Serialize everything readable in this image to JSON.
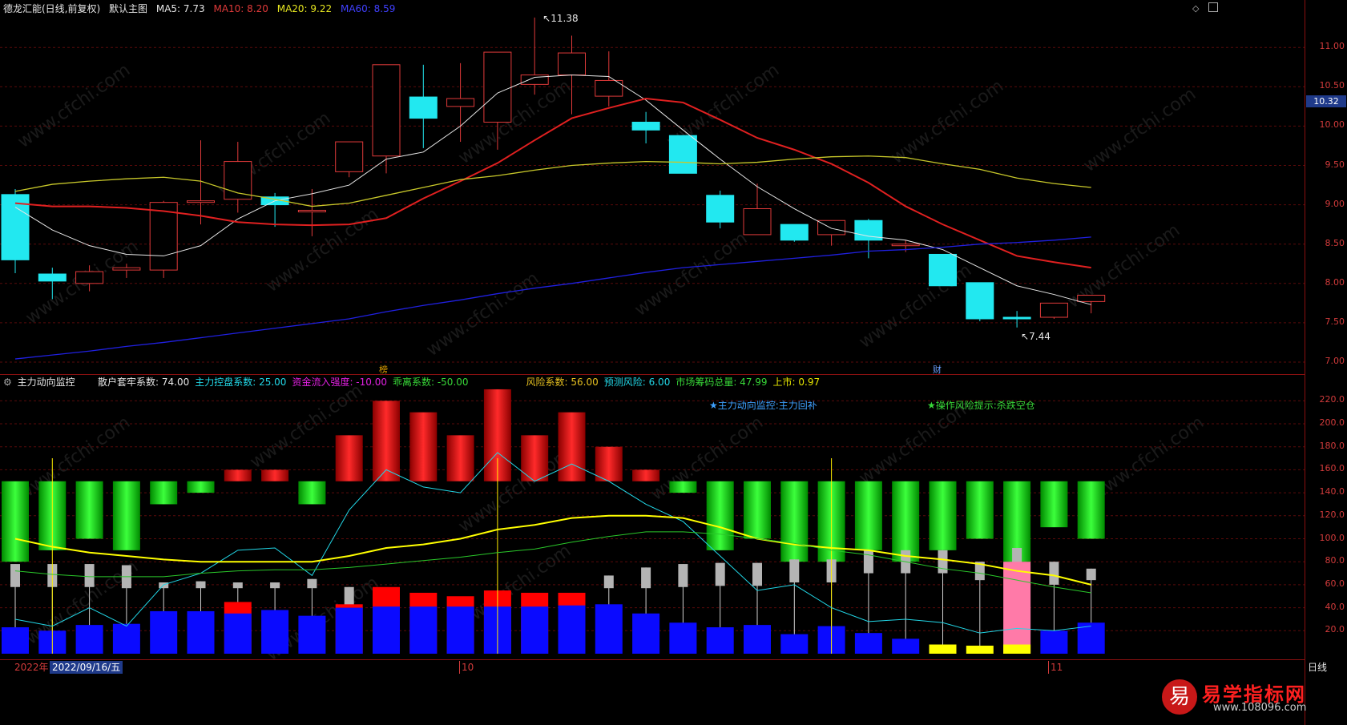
{
  "main_header": {
    "stock": "德龙汇能(日线,前复权)",
    "chart_name": "默认主图",
    "ma5": "MA5: 7.73",
    "ma10": "MA10: 8.20",
    "ma20": "MA20: 9.22",
    "ma60": "MA60: 8.59"
  },
  "colors": {
    "ma5": "#e6e6e6",
    "ma10": "#e02020",
    "ma20": "#c8c82a",
    "ma60": "#2020e0",
    "up": "#e03a3a",
    "down": "#22e8f0"
  },
  "price_axis": {
    "ticks": [
      "11.00",
      "10.50",
      "10.00",
      "9.50",
      "9.00",
      "8.50",
      "8.00",
      "7.50",
      "7.00"
    ],
    "current": "10.32"
  },
  "annotations": {
    "high_label": "11.38",
    "low_label": "7.44",
    "marker_bang": "榜",
    "marker_cai": "财"
  },
  "sub_header": {
    "title": "主力动向监控",
    "items": [
      {
        "text": "散户套牢系数: 74.00",
        "color": "#e6e6e6"
      },
      {
        "text": "主力控盘系数: 25.00",
        "color": "#22d8e8"
      },
      {
        "text": "资金流入强度: -10.00",
        "color": "#e020e0"
      },
      {
        "text": "乖离系数: -50.00",
        "color": "#38d838"
      },
      {
        "text": "风险系数: 56.00",
        "color": "#e6c020"
      },
      {
        "text": "预测风险: 6.00",
        "color": "#22d8e8"
      },
      {
        "text": "市场筹码总量: 47.99",
        "color": "#38d838"
      },
      {
        "text": "上市: 0.97",
        "color": "#e6e600"
      }
    ],
    "signal1": "★主力动向监控:主力回补",
    "signal2": "★操作风险提示:杀跌空仓"
  },
  "sub_axis": {
    "ticks": [
      "220.0",
      "200.0",
      "180.0",
      "160.0",
      "140.0",
      "120.0",
      "100.0",
      "80.0",
      "60.0",
      "40.0",
      "20.0"
    ]
  },
  "bottom_bar": {
    "year": "2022年",
    "date": "2022/09/16/五",
    "month10": "10",
    "month11": "11",
    "period": "日线"
  },
  "logo": {
    "char": "易",
    "name": "易学指标网",
    "url": "www.108096.com"
  },
  "watermark": "www.cfchi.com",
  "chart_data": [
    {
      "type": "candlestick",
      "title": "德龙汇能(日线,前复权)",
      "ylim": [
        7.0,
        11.5
      ],
      "candles": [
        [
          9.13,
          8.3,
          9.2,
          8.13
        ],
        [
          8.12,
          8.03,
          8.2,
          7.8
        ],
        [
          8.0,
          8.15,
          8.23,
          7.9
        ],
        [
          8.17,
          8.2,
          8.25,
          8.07
        ],
        [
          8.17,
          9.03,
          9.05,
          8.07
        ],
        [
          9.03,
          9.05,
          9.82,
          8.75
        ],
        [
          9.07,
          9.55,
          9.8,
          8.9
        ],
        [
          9.1,
          9.0,
          9.15,
          8.72
        ],
        [
          8.93,
          8.93,
          9.2,
          8.6
        ],
        [
          9.42,
          9.8,
          9.8,
          9.35
        ],
        [
          9.62,
          10.78,
          10.78,
          9.4
        ],
        [
          10.37,
          10.1,
          10.78,
          9.72
        ],
        [
          10.25,
          10.35,
          10.8,
          9.8
        ],
        [
          10.05,
          10.94,
          10.94,
          9.7
        ],
        [
          10.53,
          10.65,
          11.38,
          10.4
        ],
        [
          10.65,
          10.93,
          11.15,
          10.15
        ],
        [
          10.38,
          10.58,
          10.95,
          10.25
        ],
        [
          10.05,
          9.95,
          10.18,
          9.78
        ],
        [
          9.88,
          9.4,
          9.88,
          9.4
        ],
        [
          9.12,
          8.78,
          9.18,
          8.7
        ],
        [
          8.62,
          8.95,
          9.27,
          8.62
        ],
        [
          8.75,
          8.55,
          8.75,
          8.53
        ],
        [
          8.62,
          8.8,
          8.8,
          8.48
        ],
        [
          8.8,
          8.55,
          8.82,
          8.32
        ],
        [
          8.48,
          8.5,
          8.55,
          8.4
        ],
        [
          8.37,
          7.97,
          8.37,
          7.97
        ],
        [
          8.01,
          7.55,
          8.01,
          7.52
        ],
        [
          7.57,
          7.55,
          7.65,
          7.44
        ],
        [
          7.57,
          7.75,
          7.75,
          7.55
        ],
        [
          7.77,
          7.85,
          7.85,
          7.62
        ]
      ],
      "series": [
        {
          "name": "MA5",
          "values": [
            8.97,
            8.68,
            8.48,
            8.37,
            8.35,
            8.48,
            8.82,
            9.05,
            9.14,
            9.25,
            9.58,
            9.67,
            10.0,
            10.42,
            10.62,
            10.65,
            10.63,
            10.33,
            9.95,
            9.58,
            9.23,
            8.95,
            8.7,
            8.6,
            8.55,
            8.43,
            8.2,
            7.97,
            7.86,
            7.73
          ]
        },
        {
          "name": "MA10",
          "values": [
            9.02,
            8.98,
            8.98,
            8.96,
            8.92,
            8.86,
            8.78,
            8.75,
            8.74,
            8.75,
            8.83,
            9.08,
            9.3,
            9.53,
            9.82,
            10.1,
            10.23,
            10.35,
            10.3,
            10.08,
            9.85,
            9.7,
            9.52,
            9.28,
            8.98,
            8.75,
            8.55,
            8.35,
            8.27,
            8.2
          ]
        },
        {
          "name": "MA20",
          "values": [
            9.17,
            9.26,
            9.3,
            9.33,
            9.35,
            9.3,
            9.15,
            9.07,
            8.98,
            9.02,
            9.12,
            9.22,
            9.32,
            9.37,
            9.44,
            9.5,
            9.53,
            9.55,
            9.54,
            9.52,
            9.54,
            9.58,
            9.61,
            9.62,
            9.6,
            9.52,
            9.45,
            9.34,
            9.27,
            9.22
          ]
        },
        {
          "name": "MA60",
          "values": [
            7.04,
            7.09,
            7.14,
            7.2,
            7.25,
            7.31,
            7.37,
            7.43,
            7.49,
            7.55,
            7.64,
            7.72,
            7.79,
            7.87,
            7.94,
            8.0,
            8.07,
            8.14,
            8.2,
            8.24,
            8.28,
            8.32,
            8.36,
            8.41,
            8.43,
            8.46,
            8.5,
            8.52,
            8.55,
            8.59
          ]
        }
      ]
    },
    {
      "type": "bar",
      "title": "主力动向监控",
      "ylim": [
        0,
        230
      ],
      "baseline": 150,
      "flow_bars": [
        -70,
        -60,
        -50,
        -60,
        -20,
        -10,
        10,
        10,
        -20,
        40,
        70,
        60,
        40,
        80,
        40,
        60,
        30,
        10,
        -10,
        -60,
        -50,
        -70,
        -70,
        -60,
        -70,
        -60,
        -50,
        -70,
        -40,
        -50
      ],
      "blue_bars": [
        23,
        20,
        25,
        26,
        37,
        37,
        35,
        38,
        33,
        40,
        41,
        41,
        41,
        41,
        41,
        42,
        43,
        35,
        27,
        23,
        25,
        17,
        24,
        18,
        13,
        3,
        0,
        0,
        20,
        27
      ],
      "red_bars": [
        0,
        0,
        0,
        0,
        0,
        0,
        45,
        0,
        0,
        43,
        58,
        53,
        50,
        55,
        53,
        53,
        0,
        0,
        0,
        0,
        0,
        0,
        0,
        0,
        0,
        0,
        0,
        0,
        0,
        0
      ],
      "gray_bars": [
        [
          57,
          78
        ],
        [
          57,
          75
        ],
        [
          57,
          77
        ],
        [
          57,
          75
        ],
        [
          57,
          60
        ],
        [
          57,
          63
        ],
        [
          57,
          62
        ],
        [
          57,
          62
        ],
        [
          57,
          58
        ],
        [
          0,
          0
        ],
        [
          0,
          0
        ],
        [
          0,
          0
        ],
        [
          0,
          0
        ],
        [
          0,
          0
        ],
        [
          0,
          0
        ],
        [
          0,
          0
        ],
        [
          57,
          68
        ],
        [
          57,
          75
        ],
        [
          57,
          78
        ],
        [
          57,
          79
        ],
        [
          57,
          79
        ],
        [
          57,
          82
        ],
        [
          57,
          82
        ],
        [
          57,
          90
        ],
        [
          57,
          90
        ],
        [
          57,
          90
        ],
        [
          64,
          80
        ],
        [
          68,
          92
        ],
        [
          57,
          80
        ],
        [
          64,
          74
        ]
      ],
      "gray_tops": [
        78,
        78,
        78,
        77,
        62,
        63,
        62,
        62,
        65,
        58,
        0,
        0,
        0,
        0,
        0,
        0,
        68,
        75,
        78,
        79,
        79,
        82,
        82,
        90,
        90,
        90,
        80,
        92,
        80,
        74
      ],
      "yellow_small": [
        0,
        0,
        0,
        0,
        0,
        0,
        0,
        0,
        0,
        0,
        0,
        0,
        0,
        0,
        0,
        0,
        0,
        0,
        0,
        0,
        0,
        0,
        0,
        0,
        0,
        8,
        7,
        8,
        0,
        0
      ],
      "pink_band": [
        58,
        0,
        80
      ],
      "series": [
        {
          "name": "",
          "values": [
            30,
            24,
            40,
            24,
            60,
            70,
            90,
            92,
            68,
            125,
            160,
            145,
            140,
            175,
            150,
            165,
            150,
            130,
            115,
            85,
            55,
            60,
            40,
            28,
            30,
            27,
            18,
            22,
            20,
            24
          ]
        },
        {
          "name": "",
          "values": [
            100,
            93,
            88,
            85,
            82,
            80,
            80,
            80,
            80,
            85,
            92,
            95,
            100,
            108,
            112,
            118,
            120,
            120,
            118,
            110,
            100,
            95,
            92,
            90,
            85,
            82,
            78,
            72,
            68,
            60
          ]
        },
        {
          "name": "",
          "values": [
            72,
            69,
            67,
            67,
            67,
            70,
            72,
            73,
            73,
            75,
            78,
            81,
            84,
            88,
            91,
            97,
            102,
            106,
            106,
            104,
            100,
            96,
            90,
            86,
            80,
            74,
            70,
            64,
            58,
            53
          ]
        }
      ]
    }
  ]
}
